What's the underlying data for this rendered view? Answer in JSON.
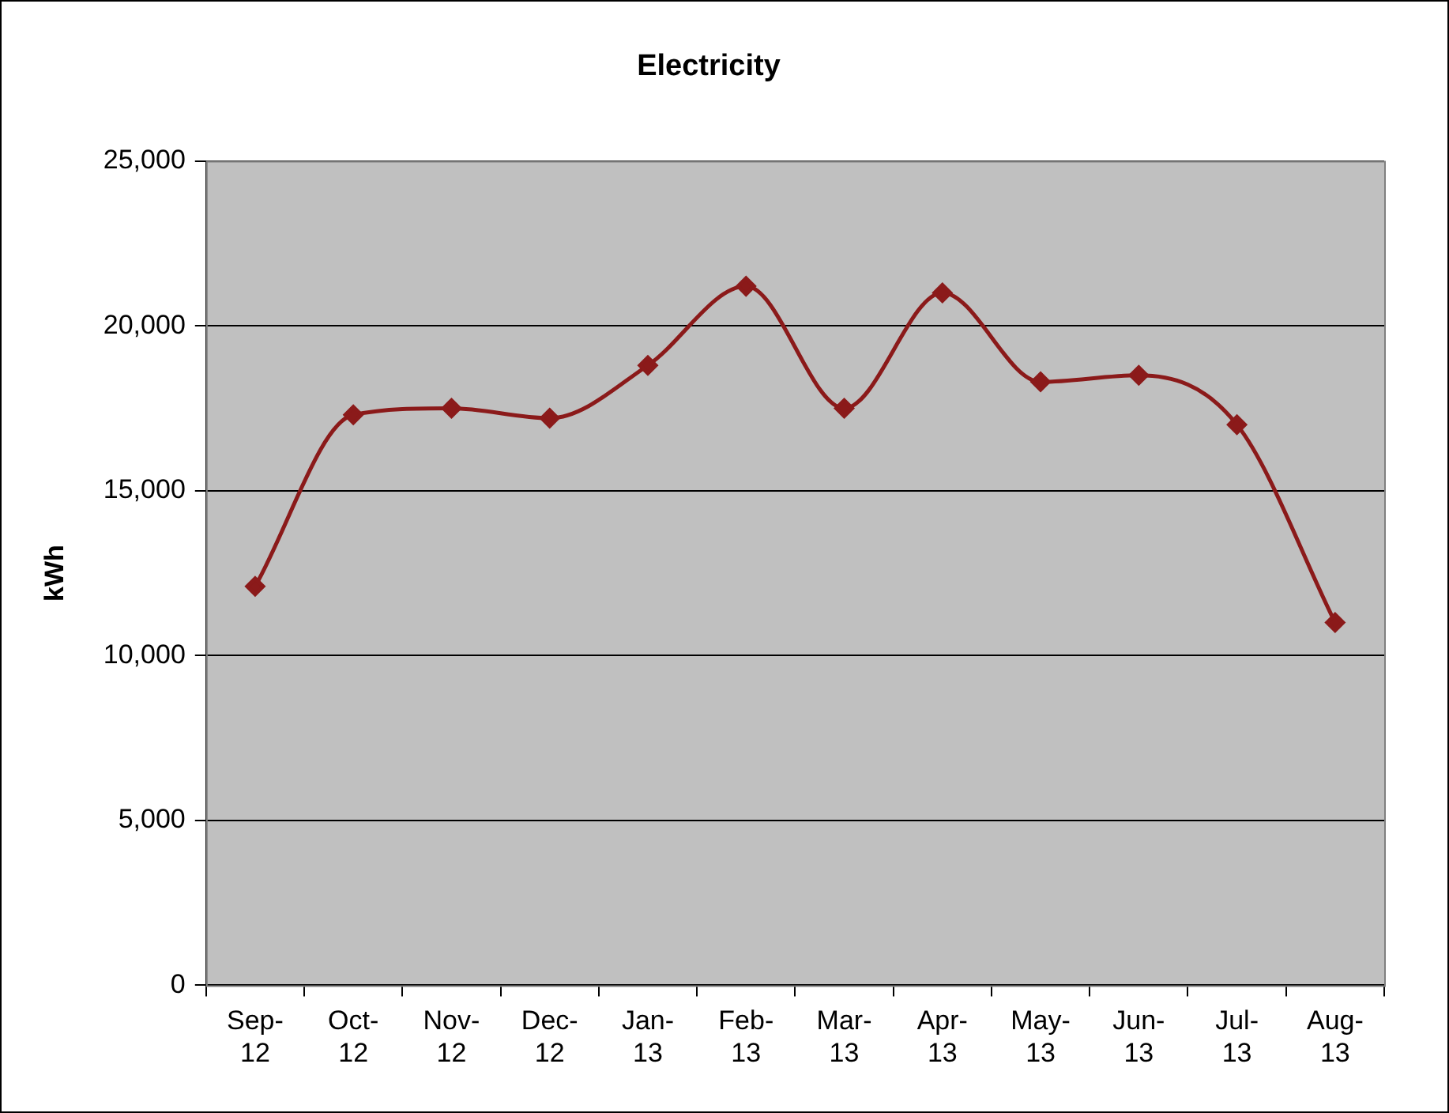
{
  "chart_data": {
    "type": "line",
    "title": "Electricity",
    "ylabel": "kWh",
    "categories": [
      "Sep-12",
      "Oct-12",
      "Nov-12",
      "Dec-12",
      "Jan-13",
      "Feb-13",
      "Mar-13",
      "Apr-13",
      "May-13",
      "Jun-13",
      "Jul-13",
      "Aug-13"
    ],
    "series": [
      {
        "color": "#8b1a1a",
        "values": [
          12100,
          17300,
          17500,
          17200,
          18800,
          21200,
          17500,
          21000,
          18300,
          18500,
          17000,
          11000
        ]
      }
    ],
    "ylim": [
      0,
      25000
    ],
    "yticks": [
      {
        "value": 0,
        "label": "0"
      },
      {
        "value": 5000,
        "label": "5,000"
      },
      {
        "value": 10000,
        "label": "10,000"
      },
      {
        "value": 15000,
        "label": "15,000"
      },
      {
        "value": 20000,
        "label": "20,000"
      },
      {
        "value": 25000,
        "label": "25,000"
      }
    ],
    "grid": "y",
    "legend": false,
    "marker": "diamond",
    "line_style": "solid"
  }
}
